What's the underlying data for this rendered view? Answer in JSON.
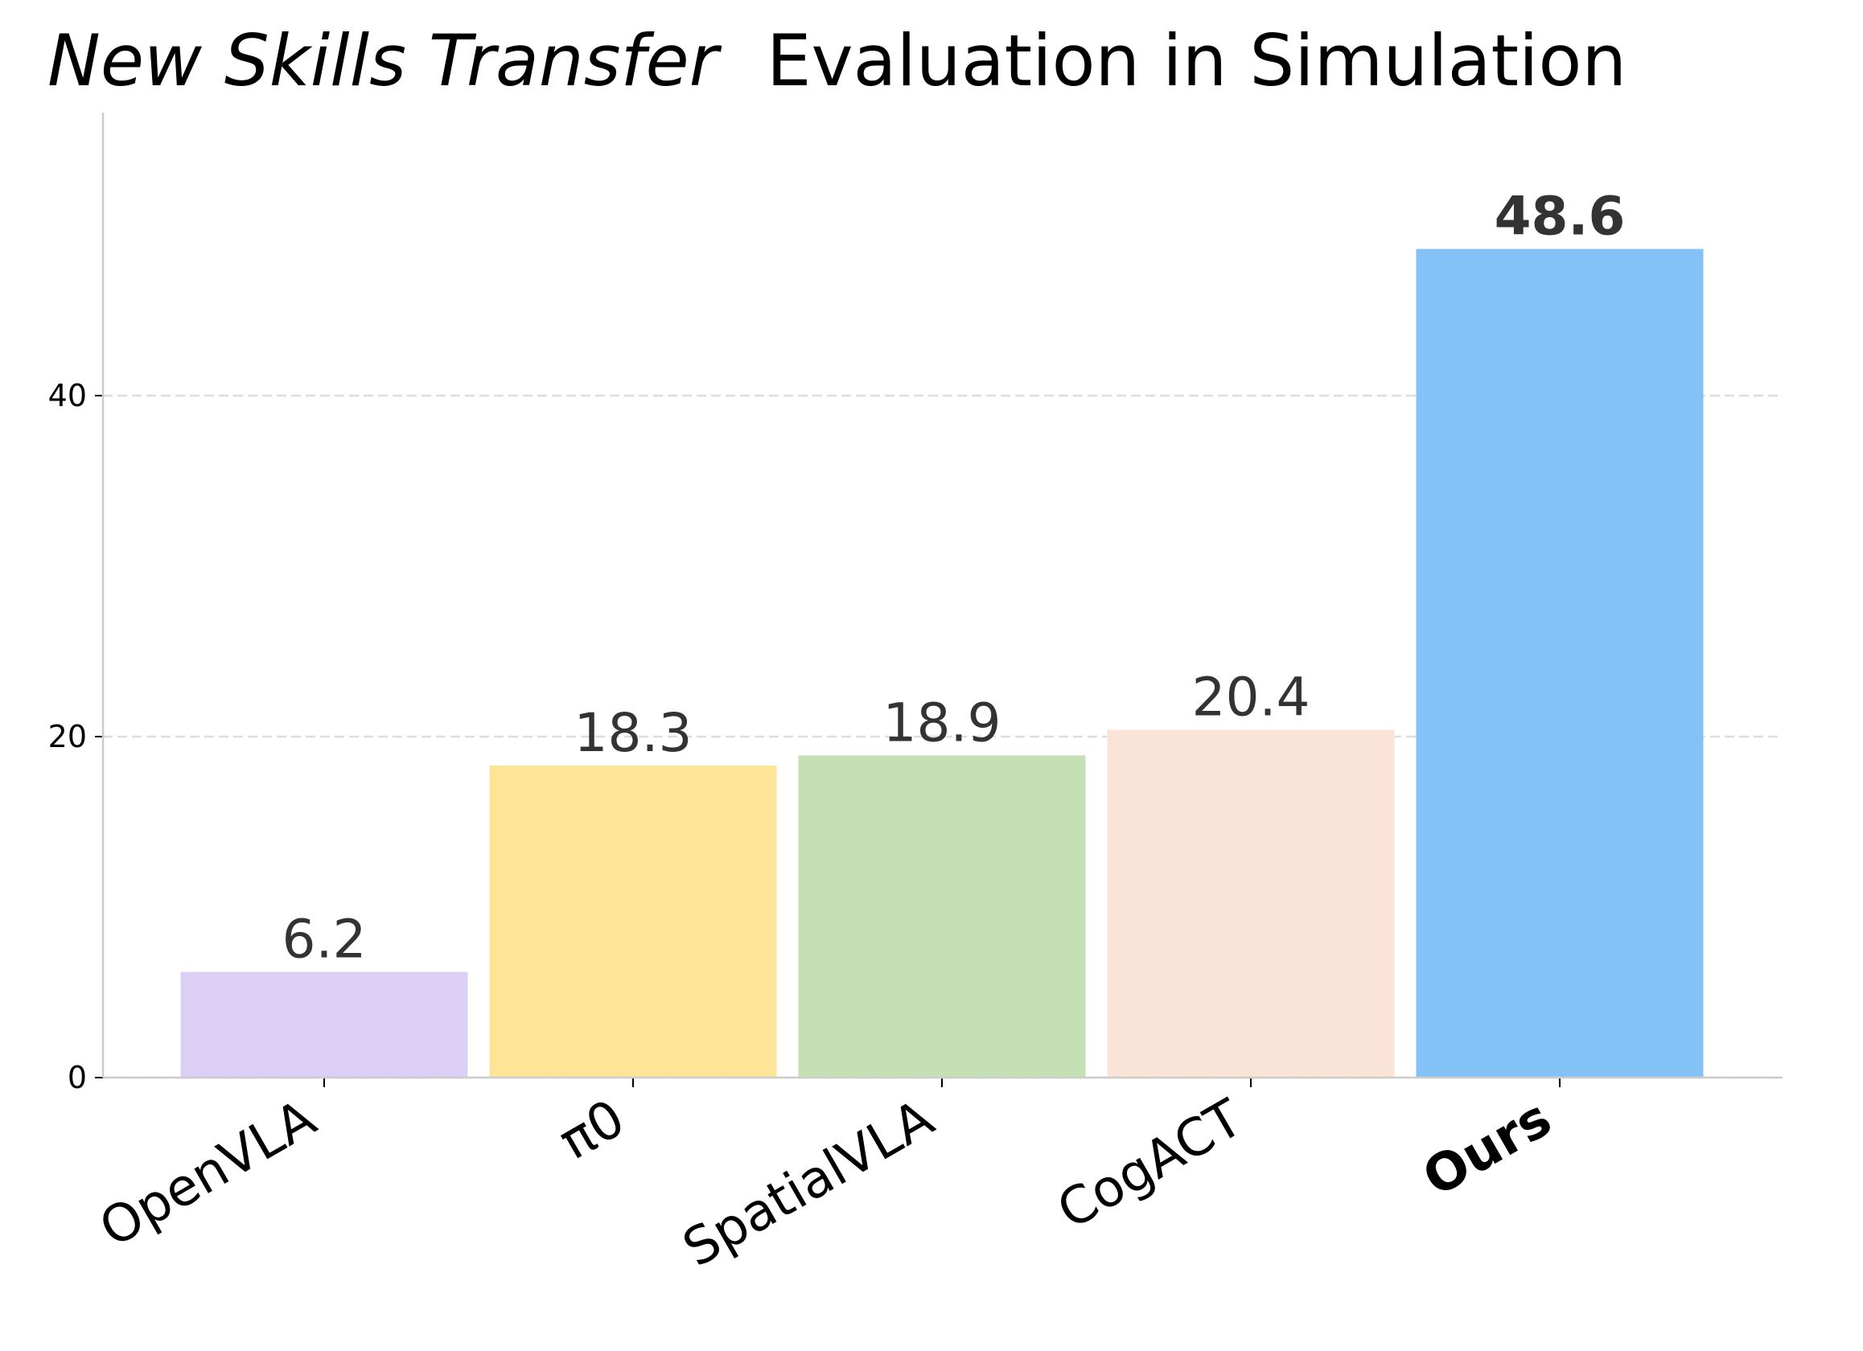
{
  "chart_data": {
    "type": "bar",
    "title_emphasis": "New Skills Transfer",
    "title": "Evaluation in Simulation",
    "categories": [
      "OpenVLA",
      "π0",
      "SpatialVLA",
      "CogACT",
      "Ours"
    ],
    "values": [
      6.2,
      18.3,
      18.9,
      20.4,
      48.6
    ],
    "colors": [
      "#dccff5",
      "#fde597",
      "#c6e0b5",
      "#fae4d7",
      "#84c1f6"
    ],
    "highlight_index": 4,
    "ylim": [
      0,
      56.6
    ],
    "yticks": [
      0,
      20,
      40
    ],
    "grid": true
  }
}
